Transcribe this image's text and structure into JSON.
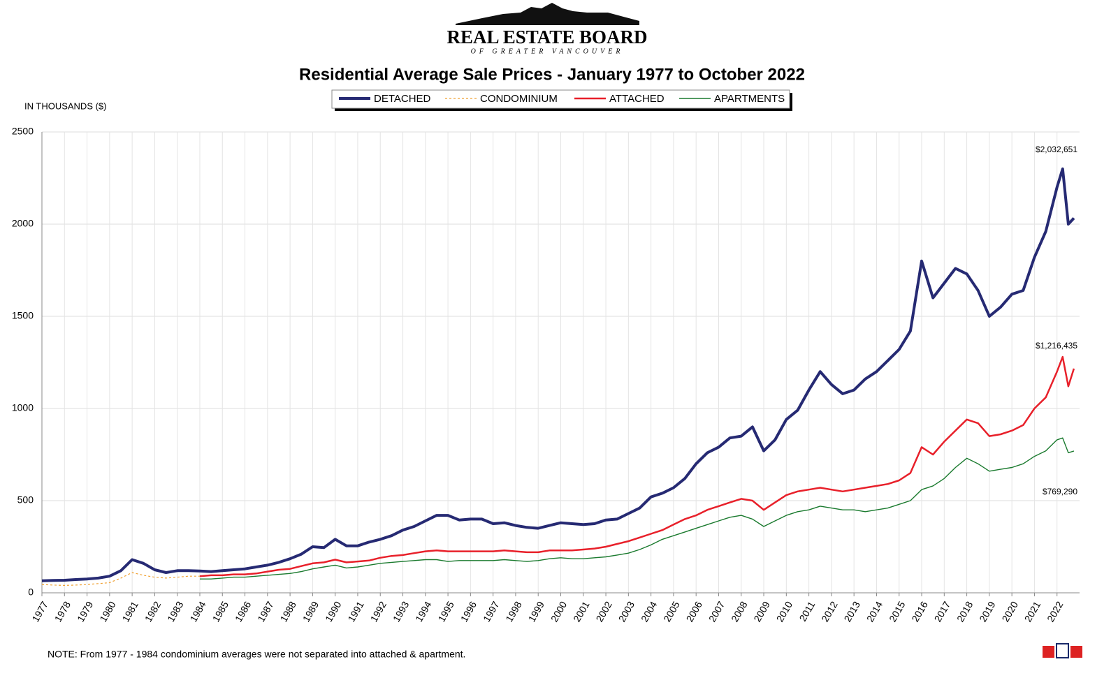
{
  "logo": {
    "title": "REAL ESTATE BOARD",
    "subtitle": "OF GREATER VANCOUVER"
  },
  "note": "NOTE:  From 1977 - 1984 condominium averages were not separated into attached & apartment.",
  "chart_data": {
    "type": "line",
    "title": "Residential Average Sale Prices  -  January 1977 to October 2022",
    "y_label": "IN THOUSANDS ($)",
    "annotations": [
      "$2,032,651",
      "$1,216,435",
      "$769,290"
    ],
    "xlim": [
      1977,
      2023
    ],
    "xticks": [
      1977,
      1978,
      1979,
      1980,
      1981,
      1982,
      1983,
      1984,
      1985,
      1986,
      1987,
      1988,
      1989,
      1990,
      1991,
      1992,
      1993,
      1994,
      1995,
      1996,
      1997,
      1998,
      1999,
      2000,
      2001,
      2002,
      2003,
      2004,
      2005,
      2006,
      2007,
      2008,
      2009,
      2010,
      2011,
      2012,
      2013,
      2014,
      2015,
      2016,
      2017,
      2018,
      2019,
      2020,
      2021,
      2022
    ],
    "ylim": [
      0,
      2500
    ],
    "yticks": [
      0,
      500,
      1000,
      1500,
      2000,
      2500
    ],
    "grid": true,
    "x": [
      1977,
      1977.5,
      1978,
      1978.5,
      1979,
      1979.5,
      1980,
      1980.5,
      1981,
      1981.5,
      1982,
      1982.5,
      1983,
      1983.5,
      1984,
      1984.5,
      1985,
      1985.5,
      1986,
      1986.5,
      1987,
      1987.5,
      1988,
      1988.5,
      1989,
      1989.5,
      1990,
      1990.5,
      1991,
      1991.5,
      1992,
      1992.5,
      1993,
      1993.5,
      1994,
      1994.5,
      1995,
      1995.5,
      1996,
      1996.5,
      1997,
      1997.5,
      1998,
      1998.5,
      1999,
      1999.5,
      2000,
      2000.5,
      2001,
      2001.5,
      2002,
      2002.5,
      2003,
      2003.5,
      2004,
      2004.5,
      2005,
      2005.5,
      2006,
      2006.5,
      2007,
      2007.5,
      2008,
      2008.5,
      2009,
      2009.5,
      2010,
      2010.5,
      2011,
      2011.5,
      2012,
      2012.5,
      2013,
      2013.5,
      2014,
      2014.5,
      2015,
      2015.5,
      2016,
      2016.5,
      2017,
      2017.5,
      2018,
      2018.5,
      2019,
      2019.5,
      2020,
      2020.5,
      2021,
      2021.5,
      2022,
      2022.25,
      2022.5,
      2022.75
    ],
    "series": [
      {
        "name": "DETACHED",
        "color": "#262a73",
        "line_width": 4,
        "dashed": false,
        "values": [
          65,
          67,
          68,
          72,
          75,
          80,
          90,
          120,
          180,
          160,
          125,
          110,
          120,
          120,
          118,
          115,
          120,
          125,
          130,
          140,
          150,
          165,
          185,
          210,
          250,
          245,
          290,
          255,
          255,
          275,
          290,
          310,
          340,
          360,
          390,
          420,
          420,
          395,
          400,
          400,
          375,
          380,
          365,
          355,
          350,
          365,
          380,
          375,
          370,
          375,
          395,
          400,
          430,
          460,
          520,
          540,
          570,
          620,
          700,
          760,
          790,
          840,
          850,
          900,
          770,
          830,
          940,
          990,
          1100,
          1200,
          1130,
          1080,
          1100,
          1160,
          1200,
          1260,
          1320,
          1420,
          1800,
          1600,
          1680,
          1760,
          1730,
          1640,
          1500,
          1550,
          1620,
          1640,
          1820,
          1960,
          2200,
          2300,
          2000,
          2032.651
        ]
      },
      {
        "name": "CONDOMINIUM",
        "color": "#f0a030",
        "line_width": 1.2,
        "dashed": true,
        "values": [
          45,
          42,
          40,
          42,
          45,
          50,
          55,
          80,
          110,
          95,
          85,
          80,
          85,
          90,
          90,
          null,
          null,
          null,
          null,
          null,
          null,
          null,
          null,
          null,
          null,
          null,
          null,
          null,
          null,
          null,
          null,
          null,
          null,
          null,
          null,
          null,
          null,
          null,
          null,
          null,
          null,
          null,
          null,
          null,
          null,
          null,
          null,
          null,
          null,
          null,
          null,
          null,
          null,
          null,
          null,
          null,
          null,
          null,
          null,
          null,
          null,
          null,
          null,
          null,
          null,
          null,
          null,
          null,
          null,
          null,
          null,
          null,
          null,
          null,
          null,
          null,
          null,
          null,
          null,
          null,
          null,
          null,
          null,
          null,
          null,
          null,
          null,
          null,
          null,
          null,
          null,
          null,
          null,
          null
        ]
      },
      {
        "name": "ATTACHED",
        "color": "#e8202a",
        "line_width": 2.5,
        "dashed": false,
        "values": [
          null,
          null,
          null,
          null,
          null,
          null,
          null,
          null,
          null,
          null,
          null,
          null,
          null,
          null,
          90,
          95,
          95,
          100,
          100,
          105,
          115,
          125,
          130,
          145,
          160,
          165,
          180,
          165,
          170,
          175,
          190,
          200,
          205,
          215,
          225,
          230,
          225,
          225,
          225,
          225,
          225,
          230,
          225,
          220,
          220,
          230,
          230,
          230,
          235,
          240,
          250,
          265,
          280,
          300,
          320,
          340,
          370,
          400,
          420,
          450,
          470,
          490,
          510,
          500,
          450,
          490,
          530,
          550,
          560,
          570,
          560,
          550,
          560,
          570,
          580,
          590,
          610,
          650,
          790,
          750,
          820,
          880,
          940,
          920,
          850,
          860,
          880,
          910,
          1000,
          1060,
          1200,
          1280,
          1120,
          1216.435
        ]
      },
      {
        "name": "APARTMENTS",
        "color": "#1a7a2e",
        "line_width": 1.4,
        "dashed": false,
        "values": [
          null,
          null,
          null,
          null,
          null,
          null,
          null,
          null,
          null,
          null,
          null,
          null,
          null,
          null,
          75,
          75,
          80,
          85,
          85,
          90,
          95,
          100,
          105,
          115,
          130,
          140,
          150,
          135,
          140,
          150,
          160,
          165,
          170,
          175,
          180,
          180,
          170,
          175,
          175,
          175,
          175,
          180,
          175,
          170,
          175,
          185,
          190,
          185,
          185,
          190,
          195,
          205,
          215,
          235,
          260,
          290,
          310,
          330,
          350,
          370,
          390,
          410,
          420,
          400,
          360,
          390,
          420,
          440,
          450,
          470,
          460,
          450,
          450,
          440,
          450,
          460,
          480,
          500,
          560,
          580,
          620,
          680,
          730,
          700,
          660,
          670,
          680,
          700,
          740,
          770,
          830,
          840,
          760,
          769.29
        ]
      }
    ]
  }
}
